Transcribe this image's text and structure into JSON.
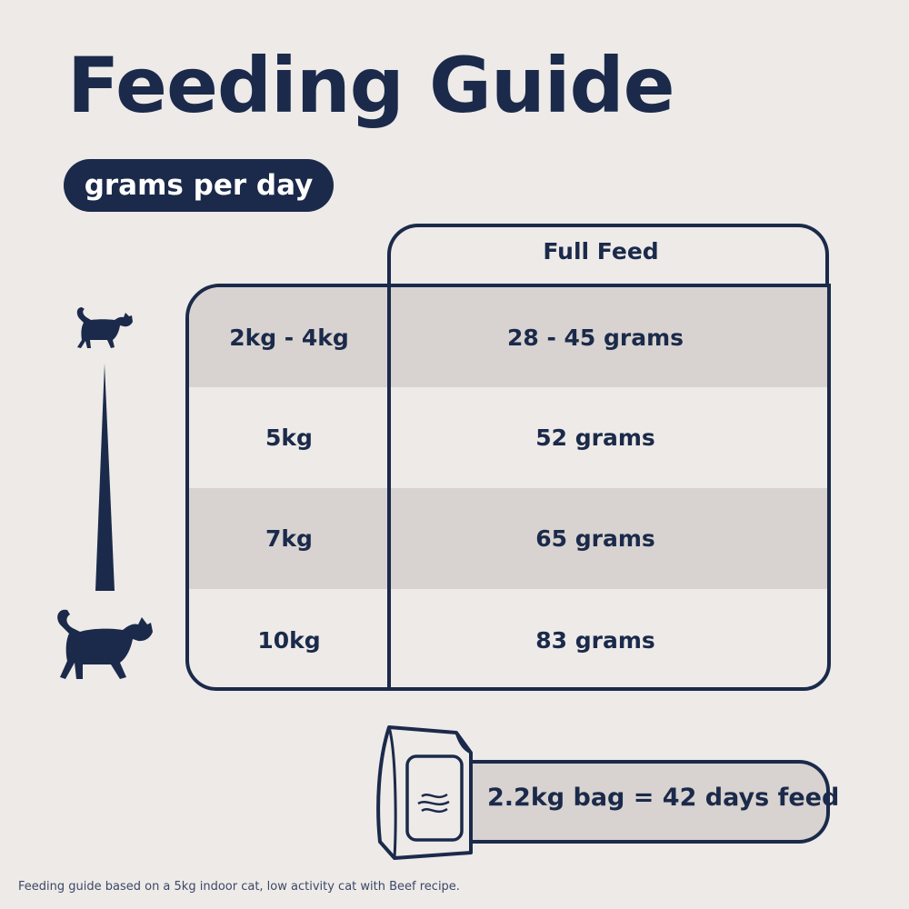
{
  "title": "Feeding Guide",
  "unit_pill": "grams per day",
  "table": {
    "column_header": "Full Feed",
    "rows": [
      {
        "weight": "2kg - 4kg",
        "amount": "28 - 45 grams",
        "shaded": true
      },
      {
        "weight": "5kg",
        "amount": "52 grams",
        "shaded": false
      },
      {
        "weight": "7kg",
        "amount": "65 grams",
        "shaded": true
      },
      {
        "weight": "10kg",
        "amount": "83 grams",
        "shaded": false
      }
    ]
  },
  "icons": {
    "small_cat": "cat-small-icon",
    "large_cat": "cat-large-icon",
    "size_scale": "size-scale-wedge-icon",
    "bag": "food-bag-icon"
  },
  "bag_info": "2.2kg bag = 42 days feed",
  "footnote": "Feeding guide based on a 5kg indoor cat, low activity cat with Beef recipe.",
  "colors": {
    "navy": "#1b2a4a",
    "background": "#edeae8",
    "shaded_row": "#d8d3d0"
  }
}
